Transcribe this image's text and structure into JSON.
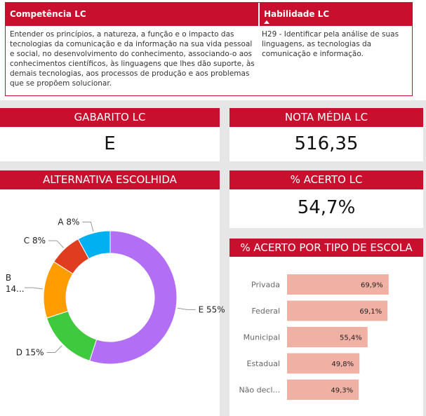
{
  "table": {
    "headers": [
      "Competência LC",
      "Habilidade LC"
    ],
    "competencia": "Entender os princípios, a natureza, a função e o impacto das tecnologias da comunicação e da informação na sua vida pessoal e social, no desenvolvimento do conhecimento, associando-o aos conhecimentos científicos, às linguagens que lhes dão suporte, às demais tecnologias, aos processos de produção e aos problemas que se propõem solucionar.",
    "habilidade": "H29 - Identificar pela análise de suas linguagens, as tecnologias da comunicação e informação."
  },
  "cards": {
    "gabarito": {
      "title": "GABARITO LC",
      "value": "E"
    },
    "nota": {
      "title": "NOTA MÉDIA LC",
      "value": "516,35"
    },
    "acerto": {
      "title": "% ACERTO LC",
      "value": "54,7%"
    }
  },
  "chart_data": [
    {
      "type": "pie",
      "title": "ALTERNATIVA ESCOLHIDA",
      "categories": [
        "E",
        "D",
        "B",
        "C",
        "A"
      ],
      "values": [
        55,
        15,
        14,
        8,
        8
      ],
      "labels": [
        "E 55%",
        "D 15%",
        "B 14...",
        "C 8%",
        "A 8%"
      ],
      "colors": [
        "#b36ef6",
        "#3ec93e",
        "#ff9d00",
        "#e03c1f",
        "#00b0f0"
      ]
    },
    {
      "type": "bar",
      "orientation": "horizontal",
      "title": "% ACERTO POR TIPO DE ESCOLA",
      "categories": [
        "Privada",
        "Federal",
        "Municipal",
        "Estadual",
        "Não decl..."
      ],
      "values": [
        69.9,
        69.1,
        55.4,
        49.8,
        49.3
      ],
      "value_labels": [
        "69,9%",
        "69,1%",
        "55,4%",
        "49,8%",
        "49,3%"
      ],
      "color": "#f0b1a4"
    }
  ],
  "colors": {
    "accent": "#c8102e",
    "background": "#e6e6e6"
  }
}
